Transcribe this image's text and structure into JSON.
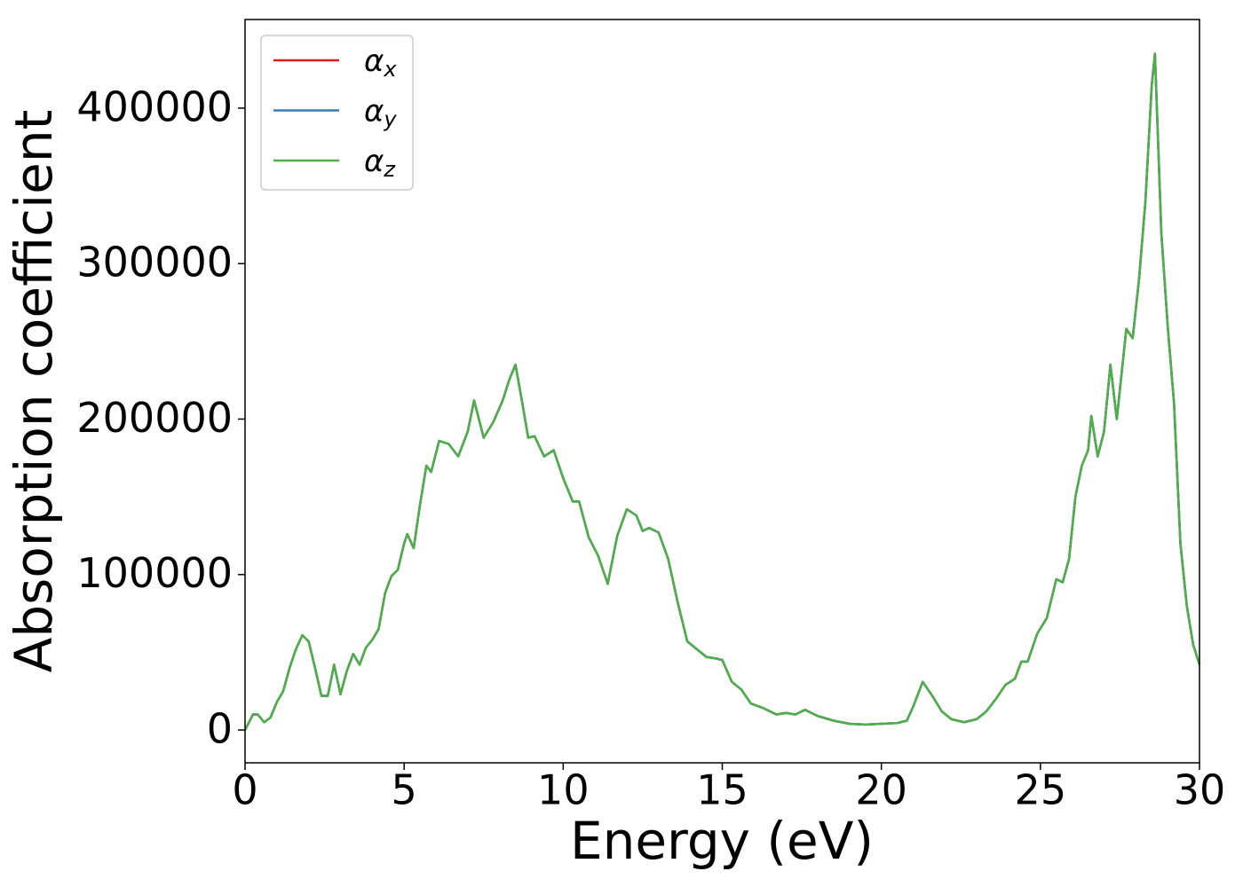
{
  "chart_data": {
    "type": "line",
    "xlabel": "Energy (eV)",
    "ylabel": "Absorption coefficient",
    "xlim": [
      0,
      30
    ],
    "xticks": [
      0,
      5,
      10,
      15,
      20,
      25,
      30
    ],
    "ylim": [
      -21100,
      457000
    ],
    "yticks": [
      0,
      100000,
      200000,
      300000,
      400000
    ],
    "legend": "upper left",
    "x": [
      0,
      0.25,
      0.4,
      0.6,
      0.8,
      1.0,
      1.2,
      1.4,
      1.6,
      1.8,
      2.0,
      2.2,
      2.4,
      2.6,
      2.8,
      3.0,
      3.2,
      3.4,
      3.6,
      3.8,
      4.0,
      4.2,
      4.4,
      4.6,
      4.8,
      5.0,
      5.1,
      5.3,
      5.5,
      5.7,
      5.85,
      6.1,
      6.4,
      6.7,
      7.0,
      7.2,
      7.5,
      7.8,
      8.1,
      8.3,
      8.5,
      8.7,
      8.9,
      9.1,
      9.4,
      9.7,
      10.0,
      10.3,
      10.5,
      10.8,
      11.1,
      11.4,
      11.7,
      12.0,
      12.3,
      12.5,
      12.7,
      13.0,
      13.3,
      13.6,
      13.9,
      14.2,
      14.5,
      14.8,
      15.0,
      15.3,
      15.6,
      15.9,
      16.3,
      16.7,
      17.0,
      17.3,
      17.6,
      18.0,
      18.5,
      19.0,
      19.5,
      20.0,
      20.5,
      20.8,
      21.0,
      21.3,
      21.6,
      21.9,
      22.2,
      22.6,
      23.0,
      23.3,
      23.6,
      23.9,
      24.2,
      24.4,
      24.6,
      24.9,
      25.2,
      25.5,
      25.7,
      25.9,
      26.1,
      26.3,
      26.5,
      26.6,
      26.8,
      27.0,
      27.2,
      27.4,
      27.7,
      27.9,
      28.1,
      28.3,
      28.5,
      28.6,
      28.8,
      29.0,
      29.2,
      29.4,
      29.6,
      29.8,
      30.0
    ],
    "series": [
      {
        "name": "αx",
        "color": "#e41a1c",
        "values": [
          0,
          10000,
          10000,
          5000,
          8000,
          18000,
          25000,
          40000,
          52000,
          61000,
          57000,
          40000,
          22000,
          22000,
          42000,
          23000,
          38000,
          49000,
          42000,
          53000,
          58000,
          65000,
          88000,
          99000,
          103000,
          120000,
          126000,
          117000,
          145000,
          170000,
          166000,
          186000,
          184000,
          176000,
          192000,
          212000,
          188000,
          198000,
          212000,
          225000,
          235000,
          212000,
          188000,
          189000,
          176000,
          180000,
          162000,
          147000,
          147000,
          124000,
          112000,
          94000,
          125000,
          142000,
          138000,
          128000,
          130000,
          127000,
          110000,
          82000,
          57000,
          52000,
          47000,
          46000,
          45000,
          31000,
          26000,
          17000,
          14000,
          10000,
          11000,
          10000,
          13000,
          9000,
          6000,
          4000,
          3500,
          4000,
          4500,
          6000,
          15000,
          31000,
          22000,
          12000,
          7000,
          5000,
          7000,
          12000,
          20000,
          29000,
          33000,
          44000,
          44000,
          62000,
          72000,
          97000,
          95000,
          110000,
          150000,
          170000,
          180000,
          202000,
          176000,
          192000,
          235000,
          200000,
          258000,
          252000,
          290000,
          340000,
          415000,
          435000,
          320000,
          260000,
          210000,
          120000,
          80000,
          55000,
          42000
        ]
      },
      {
        "name": "αy",
        "color": "#377eb8",
        "values": [
          0,
          10000,
          10000,
          5000,
          8000,
          18000,
          25000,
          40000,
          52000,
          61000,
          57000,
          40000,
          22000,
          22000,
          42000,
          23000,
          38000,
          49000,
          42000,
          53000,
          58000,
          65000,
          88000,
          99000,
          103000,
          120000,
          126000,
          117000,
          145000,
          170000,
          166000,
          186000,
          184000,
          176000,
          192000,
          212000,
          188000,
          198000,
          212000,
          225000,
          235000,
          212000,
          188000,
          189000,
          176000,
          180000,
          162000,
          147000,
          147000,
          124000,
          112000,
          94000,
          125000,
          142000,
          138000,
          128000,
          130000,
          127000,
          110000,
          82000,
          57000,
          52000,
          47000,
          46000,
          45000,
          31000,
          26000,
          17000,
          14000,
          10000,
          11000,
          10000,
          13000,
          9000,
          6000,
          4000,
          3500,
          4000,
          4500,
          6000,
          15000,
          31000,
          22000,
          12000,
          7000,
          5000,
          7000,
          12000,
          20000,
          29000,
          33000,
          44000,
          44000,
          62000,
          72000,
          97000,
          95000,
          110000,
          150000,
          170000,
          180000,
          202000,
          176000,
          192000,
          235000,
          200000,
          258000,
          252000,
          290000,
          340000,
          415000,
          435000,
          320000,
          260000,
          210000,
          120000,
          80000,
          55000,
          42000
        ]
      },
      {
        "name": "αz",
        "color": "#4daf4a",
        "values": [
          0,
          10000,
          10000,
          5000,
          8000,
          18000,
          25000,
          40000,
          52000,
          61000,
          57000,
          40000,
          22000,
          22000,
          42000,
          23000,
          38000,
          49000,
          42000,
          53000,
          58000,
          65000,
          88000,
          99000,
          103000,
          120000,
          126000,
          117000,
          145000,
          170000,
          166000,
          186000,
          184000,
          176000,
          192000,
          212000,
          188000,
          198000,
          212000,
          225000,
          235000,
          212000,
          188000,
          189000,
          176000,
          180000,
          162000,
          147000,
          147000,
          124000,
          112000,
          94000,
          125000,
          142000,
          138000,
          128000,
          130000,
          127000,
          110000,
          82000,
          57000,
          52000,
          47000,
          46000,
          45000,
          31000,
          26000,
          17000,
          14000,
          10000,
          11000,
          10000,
          13000,
          9000,
          6000,
          4000,
          3500,
          4000,
          4500,
          6000,
          15000,
          31000,
          22000,
          12000,
          7000,
          5000,
          7000,
          12000,
          20000,
          29000,
          33000,
          44000,
          44000,
          62000,
          72000,
          97000,
          95000,
          110000,
          150000,
          170000,
          180000,
          202000,
          176000,
          192000,
          235000,
          200000,
          258000,
          252000,
          290000,
          340000,
          415000,
          435000,
          320000,
          260000,
          210000,
          120000,
          80000,
          55000,
          42000
        ]
      }
    ]
  }
}
